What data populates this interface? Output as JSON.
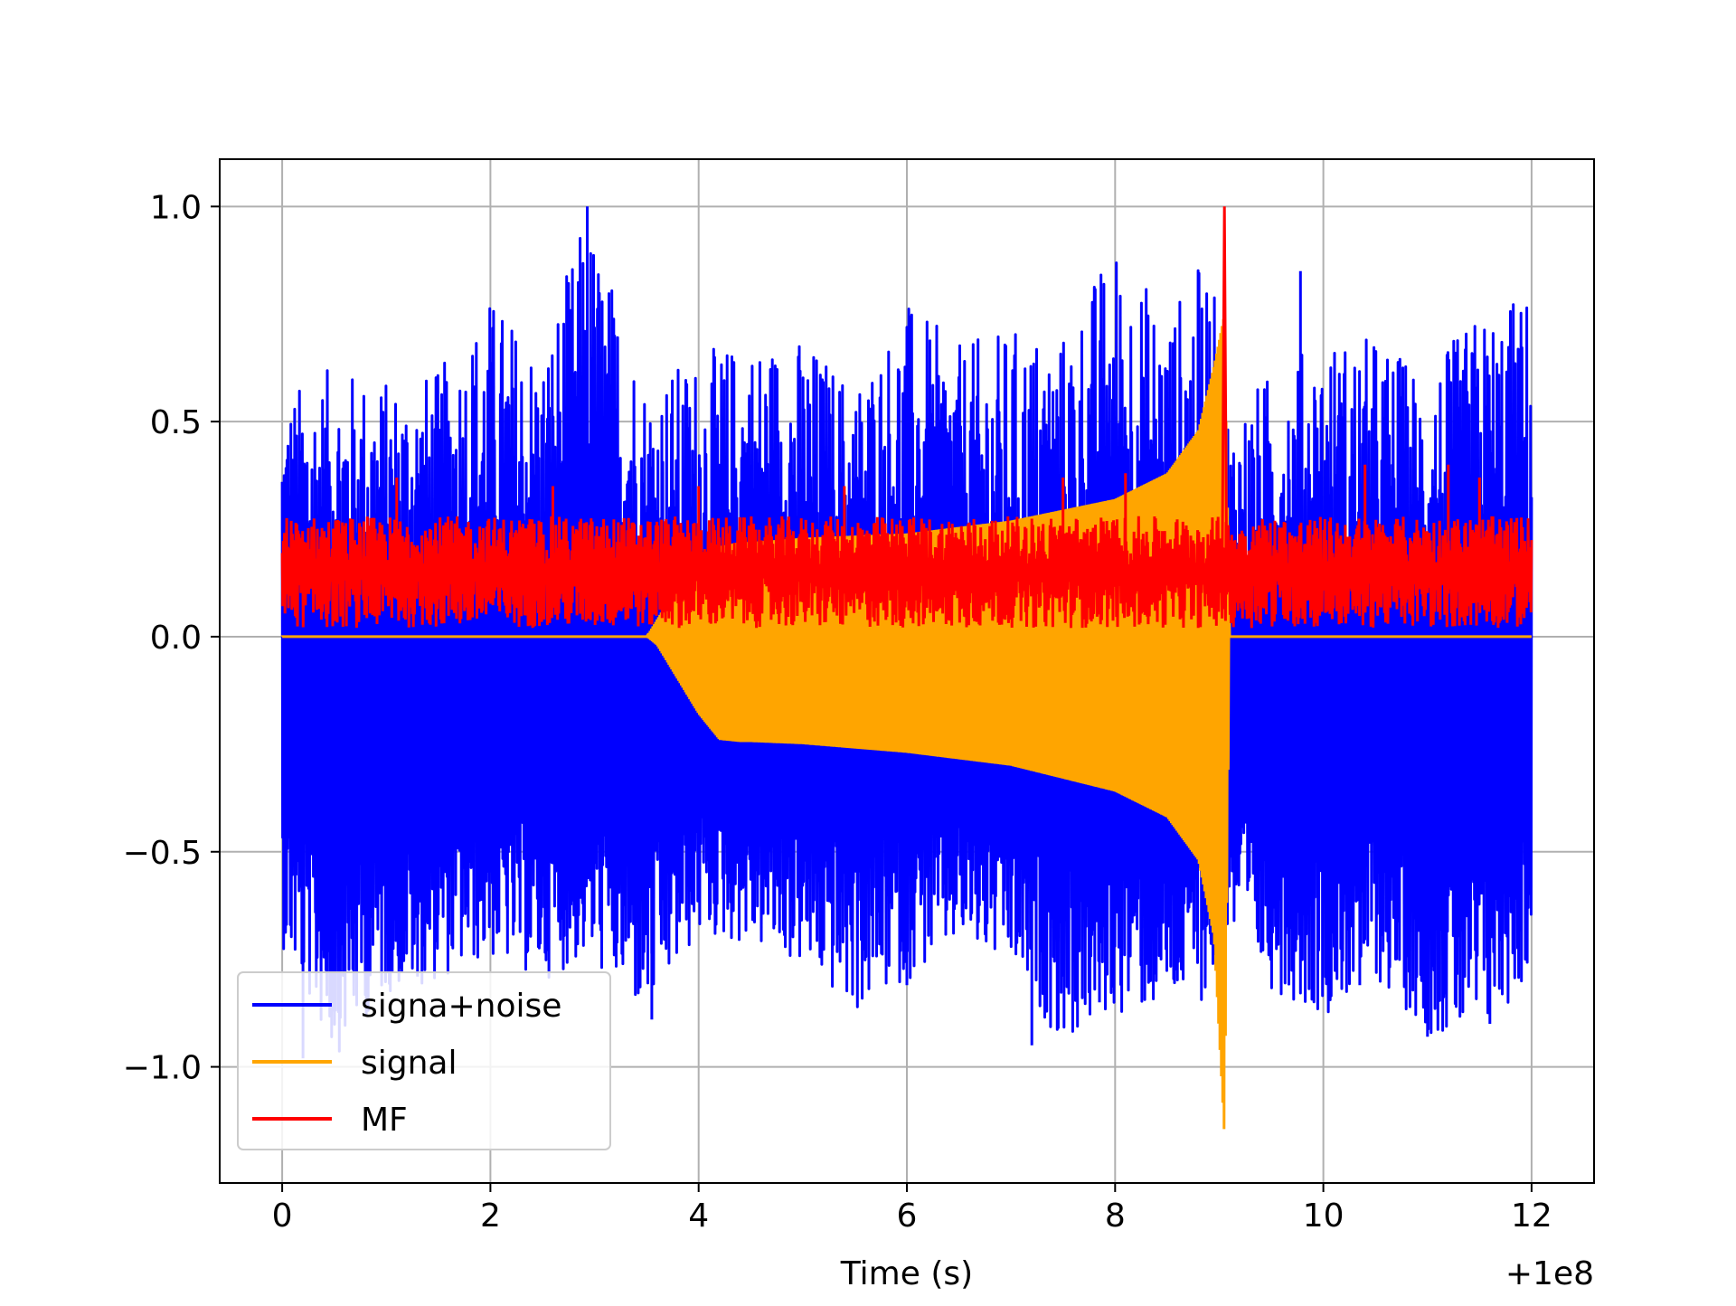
{
  "chart_data": {
    "type": "line",
    "title": "",
    "xlabel": "Time (s)",
    "ylabel": "",
    "x_offset_label": "+1e8",
    "xlim": [
      -0.6,
      12.6
    ],
    "ylim": [
      -1.27,
      1.11
    ],
    "grid": true,
    "legend_position": "lower-left",
    "x_ticks": [
      0,
      2,
      4,
      6,
      8,
      10,
      12
    ],
    "x_tick_labels": [
      "0",
      "2",
      "4",
      "6",
      "8",
      "10",
      "12"
    ],
    "y_ticks": [
      1.0,
      0.5,
      0.0,
      -0.5,
      -1.0
    ],
    "y_tick_labels": [
      "1.0",
      "0.5",
      "0.0",
      "−0.5",
      "−1.0"
    ],
    "series": [
      {
        "name": "signa+noise",
        "color": "#0000ff",
        "envelope_x": [
          0,
          0.5,
          1,
          1.5,
          2,
          2.5,
          2.93,
          3.5,
          4,
          4.5,
          5,
          5.5,
          6,
          6.5,
          7,
          7.5,
          8,
          8.5,
          8.9,
          9.1,
          9.5,
          10,
          10.5,
          11,
          11.5,
          12
        ],
        "envelope_upper": [
          0.57,
          0.63,
          0.6,
          0.62,
          0.8,
          0.67,
          1.0,
          0.6,
          0.66,
          0.7,
          0.7,
          0.6,
          0.78,
          0.68,
          0.72,
          0.71,
          0.93,
          0.76,
          0.9,
          0.52,
          0.62,
          0.7,
          0.7,
          0.62,
          0.76,
          0.81
        ],
        "envelope_lower": [
          -0.72,
          -0.98,
          -0.83,
          -0.8,
          -0.75,
          -0.8,
          -0.75,
          -0.89,
          -0.7,
          -0.72,
          -0.77,
          -0.88,
          -0.8,
          -0.72,
          -0.78,
          -0.95,
          -0.88,
          -0.87,
          -0.84,
          -0.7,
          -0.82,
          -0.88,
          -0.8,
          -0.92,
          -0.96,
          -0.78
        ],
        "spikes": [
          [
            0.2,
            -0.98
          ],
          [
            1.3,
            -0.79
          ],
          [
            2.93,
            1.0
          ],
          [
            3.55,
            -0.89
          ],
          [
            6.0,
            -0.81
          ],
          [
            7.2,
            -0.95
          ],
          [
            7.85,
            -0.85
          ],
          [
            9.78,
            0.85
          ],
          [
            10.35,
            -0.81
          ],
          [
            11.0,
            -0.93
          ],
          [
            11.6,
            -0.9
          ]
        ]
      },
      {
        "name": "signal",
        "color": "#ffa500",
        "x": [
          0,
          3.5,
          3.6,
          3.8,
          4.0,
          4.2,
          4.4,
          4.5,
          5.0,
          6.0,
          7.0,
          8.0,
          8.5,
          8.8,
          8.95,
          9.05,
          9.1,
          12.0
        ],
        "upper": [
          0.0,
          0.0,
          0.04,
          0.12,
          0.18,
          0.21,
          0.22,
          0.22,
          0.23,
          0.24,
          0.27,
          0.32,
          0.38,
          0.48,
          0.63,
          0.75,
          0.0,
          0.0
        ],
        "lower": [
          0.0,
          0.0,
          -0.02,
          -0.1,
          -0.18,
          -0.24,
          -0.245,
          -0.245,
          -0.25,
          -0.27,
          -0.3,
          -0.36,
          -0.42,
          -0.52,
          -0.7,
          -1.16,
          0.0,
          0.0
        ]
      },
      {
        "name": "MF",
        "color": "#ff0000",
        "band": [
          0.02,
          0.28
        ],
        "peak_x": 9.05,
        "peak_y": 1.0,
        "spikes": [
          [
            1.1,
            0.37
          ],
          [
            2.6,
            0.35
          ],
          [
            4.0,
            0.35
          ],
          [
            5.4,
            0.35
          ],
          [
            7.5,
            0.37
          ],
          [
            8.1,
            0.38
          ],
          [
            10.4,
            0.4
          ],
          [
            11.2,
            0.4
          ],
          [
            11.5,
            0.37
          ]
        ]
      }
    ]
  }
}
